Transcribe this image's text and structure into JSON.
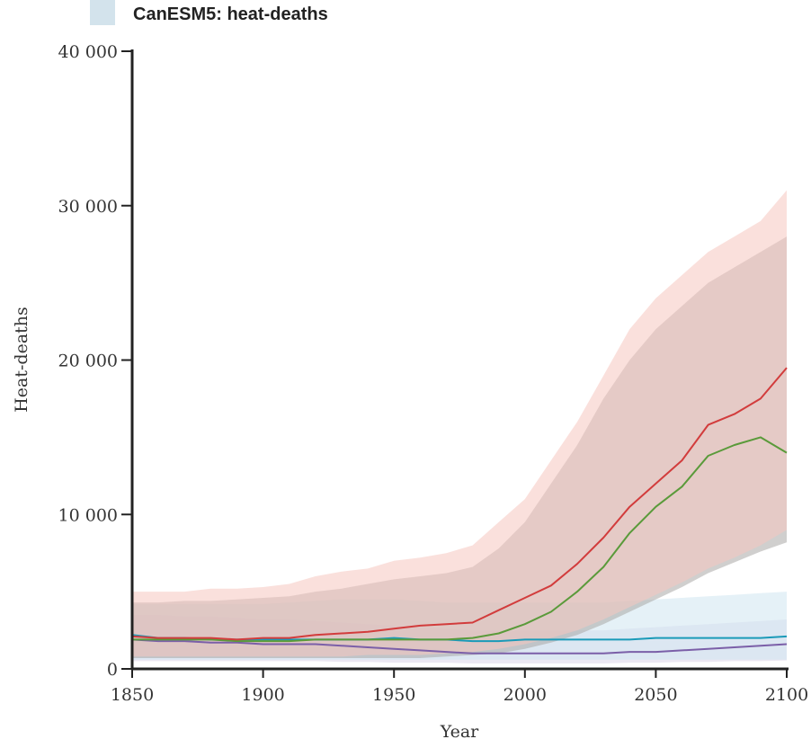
{
  "legend": {
    "label": "CanESM5: heat-deaths",
    "swatch_color": "#d3e3ec"
  },
  "chart_data": {
    "type": "line",
    "title": "",
    "xlabel": "Year",
    "ylabel": "Heat-deaths",
    "xlim": [
      1850,
      2100
    ],
    "ylim": [
      0,
      40000
    ],
    "xticks": [
      1850,
      1900,
      1950,
      2000,
      2050,
      2100
    ],
    "xtick_labels": [
      "1850",
      "1900",
      "1950",
      "2000",
      "2050",
      "2100"
    ],
    "yticks": [
      0,
      10000,
      20000,
      30000,
      40000
    ],
    "ytick_labels": [
      "0",
      "10 000",
      "20 000",
      "30 000",
      "40 000"
    ],
    "grid": false,
    "x": [
      1850,
      1860,
      1870,
      1880,
      1890,
      1900,
      1910,
      1920,
      1930,
      1940,
      1950,
      1960,
      1970,
      1980,
      1990,
      2000,
      2010,
      2020,
      2030,
      2040,
      2050,
      2060,
      2070,
      2080,
      2090,
      2100
    ],
    "series": [
      {
        "color": "#d23c3c",
        "band_color": "#f6c6c0",
        "values": [
          2100,
          2000,
          2000,
          2000,
          1900,
          2000,
          2000,
          2200,
          2300,
          2400,
          2600,
          2800,
          2900,
          3000,
          3800,
          4600,
          5400,
          6800,
          8500,
          10500,
          12000,
          13500,
          15800,
          16500,
          17500,
          19500
        ],
        "lower": [
          800,
          800,
          800,
          800,
          800,
          800,
          800,
          800,
          800,
          900,
          900,
          900,
          1000,
          1100,
          1300,
          1600,
          2000,
          2500,
          3200,
          4000,
          4800,
          5600,
          6500,
          7200,
          8000,
          9000
        ],
        "upper": [
          5000,
          5000,
          5000,
          5200,
          5200,
          5300,
          5500,
          6000,
          6300,
          6500,
          7000,
          7200,
          7500,
          8000,
          9500,
          11000,
          13500,
          16000,
          19000,
          22000,
          24000,
          25500,
          27000,
          28000,
          29000,
          31000
        ]
      },
      {
        "color": "#5a9a3a",
        "band_color": "#a9a7a5",
        "values": [
          1900,
          1900,
          1900,
          1900,
          1800,
          1800,
          1800,
          1900,
          1900,
          1900,
          1900,
          1900,
          1900,
          2000,
          2300,
          2900,
          3700,
          5000,
          6600,
          8800,
          10500,
          11800,
          13800,
          14500,
          15000,
          14000
        ],
        "lower": [
          700,
          700,
          700,
          700,
          700,
          700,
          700,
          700,
          700,
          700,
          700,
          700,
          800,
          900,
          1000,
          1300,
          1700,
          2200,
          2900,
          3700,
          4500,
          5300,
          6200,
          6900,
          7600,
          8200
        ],
        "upper": [
          4300,
          4300,
          4400,
          4400,
          4500,
          4600,
          4700,
          5000,
          5200,
          5500,
          5800,
          6000,
          6200,
          6600,
          7800,
          9500,
          12000,
          14500,
          17500,
          20000,
          22000,
          23500,
          25000,
          26000,
          27000,
          28000
        ]
      },
      {
        "color": "#1a9ab8",
        "band_color": "#cfe6f1",
        "values": [
          2200,
          2000,
          2000,
          1900,
          1900,
          1900,
          1900,
          1900,
          1900,
          1900,
          2000,
          1900,
          1900,
          1800,
          1800,
          1900,
          1900,
          1900,
          1900,
          1900,
          2000,
          2000,
          2000,
          2000,
          2000,
          2100
        ],
        "lower": [
          600,
          600,
          600,
          600,
          600,
          600,
          600,
          600,
          600,
          600,
          600,
          600,
          600,
          600,
          600,
          600,
          600,
          600,
          600,
          600,
          600,
          600,
          600,
          600,
          600,
          600
        ],
        "upper": [
          4200,
          4200,
          4200,
          4200,
          4200,
          4200,
          4300,
          4400,
          4500,
          4500,
          4500,
          4400,
          4300,
          4300,
          4300,
          4300,
          4300,
          4300,
          4300,
          4400,
          4500,
          4600,
          4700,
          4800,
          4900,
          5000
        ]
      },
      {
        "color": "#7b5fa8",
        "band_color": "#dcd6ea",
        "values": [
          1900,
          1800,
          1800,
          1700,
          1700,
          1600,
          1600,
          1600,
          1500,
          1400,
          1300,
          1200,
          1100,
          1000,
          1000,
          1000,
          1000,
          1000,
          1000,
          1100,
          1100,
          1200,
          1300,
          1400,
          1500,
          1600
        ],
        "lower": [
          500,
          500,
          500,
          500,
          500,
          500,
          500,
          500,
          450,
          450,
          400,
          400,
          400,
          350,
          350,
          350,
          350,
          350,
          350,
          400,
          400,
          450,
          450,
          500,
          500,
          550
        ],
        "upper": [
          3500,
          3500,
          3400,
          3400,
          3300,
          3200,
          3200,
          3100,
          3000,
          2900,
          2800,
          2700,
          2600,
          2500,
          2500,
          2500,
          2500,
          2500,
          2500,
          2600,
          2700,
          2800,
          2900,
          3000,
          3100,
          3200
        ]
      }
    ]
  }
}
